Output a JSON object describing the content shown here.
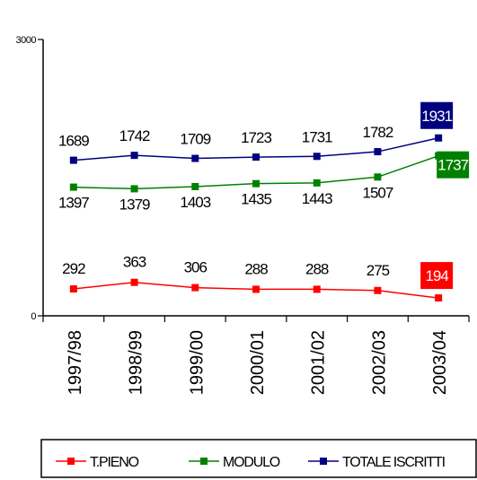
{
  "chart_data": {
    "type": "line",
    "categories": [
      "1997/98",
      "1998/99",
      "1999/00",
      "2000/01",
      "2001/02",
      "2002/03",
      "2003/04"
    ],
    "ylim": [
      0,
      3000
    ],
    "ytick_labels": [
      "0",
      "3000"
    ],
    "legend_position": "bottom",
    "grid": false,
    "series": [
      {
        "name": "T.PIENO",
        "color": "#ff0000",
        "values": [
          292,
          363,
          306,
          288,
          288,
          275,
          194
        ]
      },
      {
        "name": "MODULO",
        "color": "#008000",
        "values": [
          1397,
          1379,
          1403,
          1435,
          1443,
          1507,
          1737
        ]
      },
      {
        "name": "TOTALE ISCRITTI",
        "color": "#000080",
        "values": [
          1689,
          1742,
          1709,
          1723,
          1731,
          1782,
          1931
        ]
      }
    ],
    "highlight_last_point": true
  }
}
